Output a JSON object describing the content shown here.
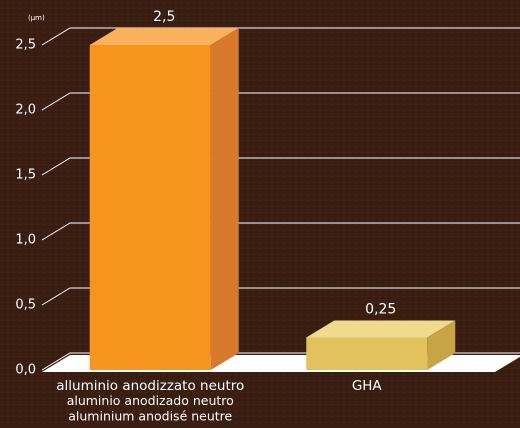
{
  "chart_data": {
    "type": "bar3d",
    "y_label": "(µm)",
    "categories": [
      [
        "alluminio anodizzato neutro",
        "aluminio anodizado neutro",
        "aluminium anodisé neutre"
      ],
      [
        "GHA"
      ]
    ],
    "values": [
      2.5,
      0.25
    ],
    "value_labels": [
      "2,5",
      "0,25"
    ],
    "series_colors": [
      {
        "front": "#f7941d",
        "top": "#fbb25e",
        "side": "#d9792b"
      },
      {
        "front": "#e2c25c",
        "top": "#f0da8e",
        "side": "#c7a444"
      }
    ],
    "ylim": [
      0,
      2.5
    ],
    "yticks": [
      {
        "value": 0,
        "label": "0,0"
      },
      {
        "value": 0.5,
        "label": "0,5"
      },
      {
        "value": 1,
        "label": "1,0"
      },
      {
        "value": 1.5,
        "label": "1,5"
      },
      {
        "value": 2,
        "label": "2,0"
      },
      {
        "value": 2.5,
        "label": "2,5"
      }
    ],
    "grid": true
  }
}
